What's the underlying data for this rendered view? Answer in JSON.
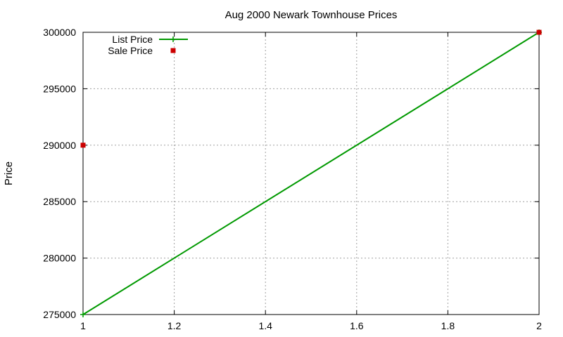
{
  "chart_data": {
    "type": "line",
    "title": "Aug 2000 Newark Townhouse Prices",
    "xlabel": "",
    "ylabel": "Price",
    "xlim": [
      1,
      2
    ],
    "ylim": [
      275000,
      300000
    ],
    "x_ticks": [
      1,
      1.2,
      1.4,
      1.6,
      1.8,
      2
    ],
    "x_tick_labels": [
      "1",
      "1.2",
      "1.4",
      "1.6",
      "1.8",
      "2"
    ],
    "y_ticks": [
      275000,
      280000,
      285000,
      290000,
      295000,
      300000
    ],
    "y_tick_labels": [
      "275000",
      "280000",
      "285000",
      "290000",
      "295000",
      "300000"
    ],
    "grid": true,
    "legend_position": "top-left",
    "series": [
      {
        "name": "List Price",
        "style": "line",
        "marker": "plus",
        "color": "#009900",
        "x": [
          1,
          2
        ],
        "y": [
          275000,
          300000
        ]
      },
      {
        "name": "Sale Price",
        "style": "points",
        "marker": "square",
        "color": "#cc0000",
        "x": [
          1,
          2
        ],
        "y": [
          290000,
          300000
        ]
      }
    ]
  }
}
